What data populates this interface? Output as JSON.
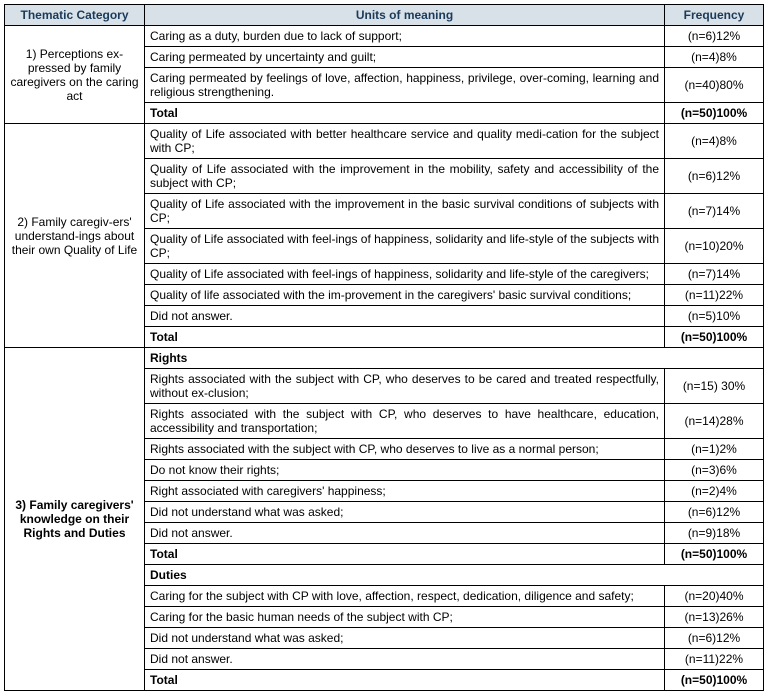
{
  "header": {
    "thematic": "Thematic Category",
    "units": "Units of meaning",
    "frequency": "Frequency"
  },
  "cat1": {
    "title": "1) Perceptions ex-pressed by family caregivers on the caring act",
    "rows": [
      {
        "u": "Caring as a duty, burden due to lack of support;",
        "f": "(n=6)12%"
      },
      {
        "u": "Caring permeated by uncertainty and guilt;",
        "f": "(n=4)8%"
      },
      {
        "u": "Caring permeated by feelings of love, affection, happiness, privilege, over-coming, learning and religious strengthening.",
        "f": "(n=40)80%"
      }
    ],
    "total": {
      "u": "Total",
      "f": "(n=50)100%"
    }
  },
  "cat2": {
    "title": "2) Family caregiv-ers' understand-ings about their own Quality of Life",
    "rows": [
      {
        "u": "Quality of Life associated with better healthcare service and quality medi-cation for the subject with CP;",
        "f": "(n=4)8%"
      },
      {
        "u": "Quality of Life associated with the improvement in the mobility, safety and accessibility of the subject with CP;",
        "f": "(n=6)12%"
      },
      {
        "u": "Quality of Life associated with the improvement in the basic survival conditions of subjects with CP;",
        "f": "(n=7)14%"
      },
      {
        "u": "Quality of Life associated with feel-ings of happiness, solidarity and life-style of the subjects with CP;",
        "f": "(n=10)20%"
      },
      {
        "u": "Quality of Life associated with feel-ings of happiness, solidarity and life-style of the caregivers;",
        "f": "(n=7)14%"
      },
      {
        "u": "Quality of life associated with the im-provement in the caregivers' basic survival conditions;",
        "f": "(n=11)22%"
      },
      {
        "u": "Did not answer.",
        "f": "(n=5)10%"
      }
    ],
    "total": {
      "u": "Total",
      "f": "(n=50)100%"
    }
  },
  "cat3": {
    "title": "3) Family caregivers' knowledge on their Rights and Duties",
    "rightsHeader": "Rights",
    "rights": [
      {
        "u": "Rights associated with the subject with CP, who deserves to be cared and treated respectfully, without ex-clusion;",
        "f": "(n=15) 30%"
      },
      {
        "u": "Rights associated with the subject with CP, who deserves to have healthcare, education, accessibility and transportation;",
        "f": "(n=14)28%"
      },
      {
        "u": "Rights associated with the subject with CP, who deserves to live as a normal person;",
        "f": "(n=1)2%"
      },
      {
        "u": "Do not know their rights;",
        "f": "(n=3)6%"
      },
      {
        "u": "Right associated with caregivers' happiness;",
        "f": "(n=2)4%"
      },
      {
        "u": "Did not understand what was asked;",
        "f": "(n=6)12%"
      },
      {
        "u": "Did not answer.",
        "f": "(n=9)18%"
      }
    ],
    "rightsTotal": {
      "u": "Total",
      "f": "(n=50)100%"
    },
    "dutiesHeader": "Duties",
    "duties": [
      {
        "u": "Caring for the subject with CP with love, affection, respect, dedication, diligence and safety;",
        "f": "(n=20)40%"
      },
      {
        "u": "Caring for the basic human needs of the subject with CP;",
        "f": "(n=13)26%"
      },
      {
        "u": "Did not understand what was asked;",
        "f": "(n=6)12%"
      },
      {
        "u": "Did not answer.",
        "f": "(n=11)22%"
      }
    ],
    "dutiesTotal": {
      "u": "Total",
      "f": "(n=50)100%"
    }
  }
}
